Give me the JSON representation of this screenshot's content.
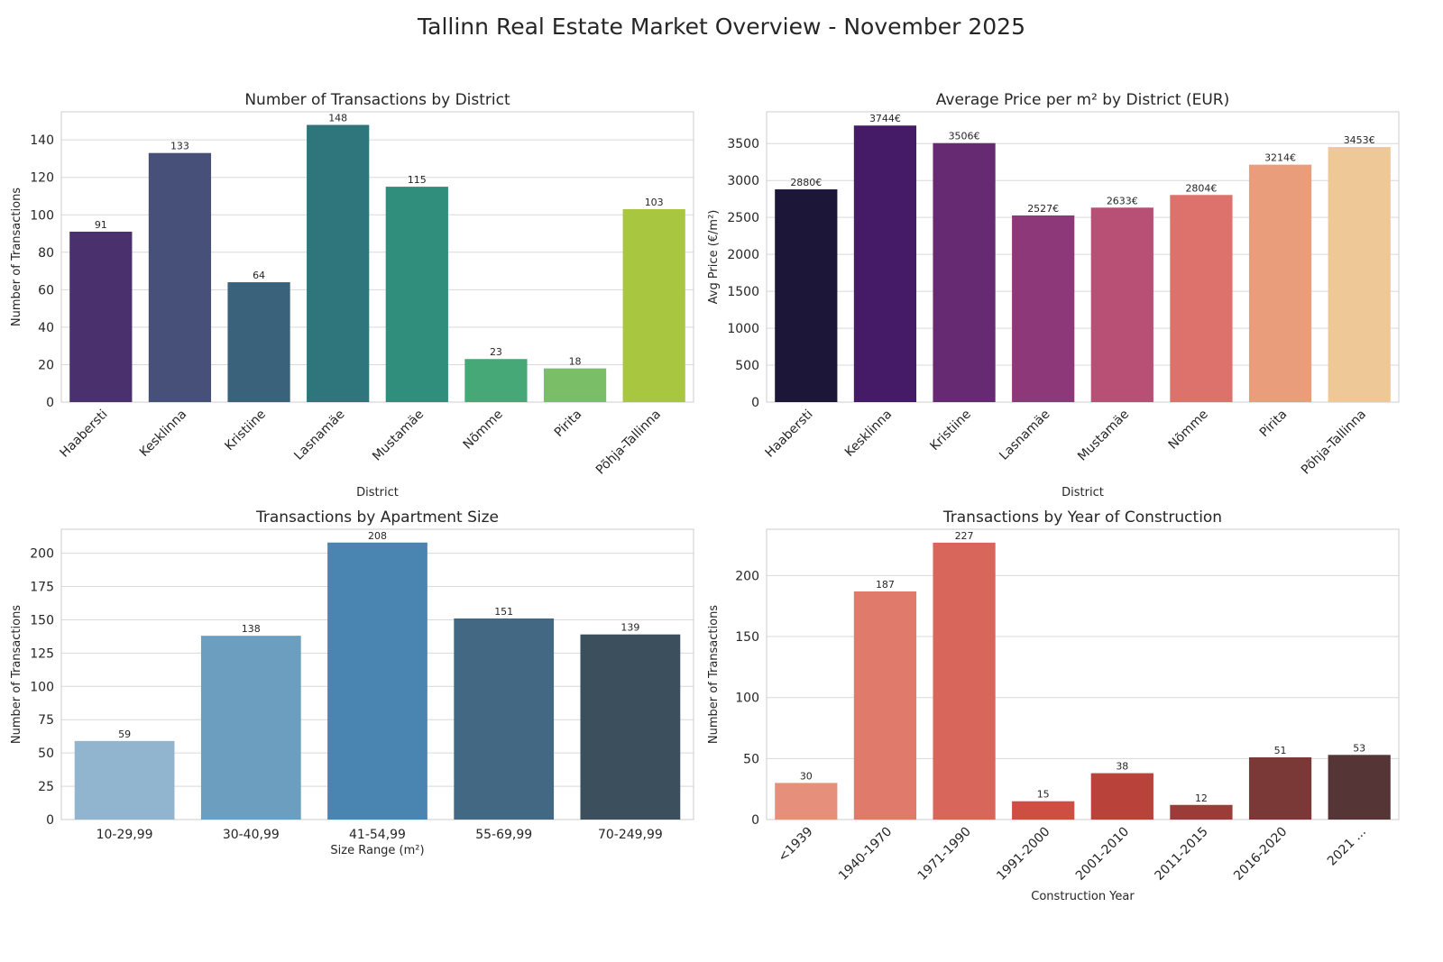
{
  "title": "Tallinn Real Estate Market Overview - November 2025",
  "chart_data": [
    {
      "id": "district-transactions",
      "type": "bar",
      "title": "Number of Transactions by District",
      "xlabel": "District",
      "ylabel": "Number of Transactions",
      "categories": [
        "Haabersti",
        "Kesklinna",
        "Kristiine",
        "Lasnamäe",
        "Mustamäe",
        "Nõmme",
        "Pirita",
        "Põhja-Tallinna"
      ],
      "values": [
        91,
        133,
        64,
        148,
        115,
        23,
        18,
        103
      ],
      "value_labels": [
        "91",
        "133",
        "64",
        "148",
        "115",
        "23",
        "18",
        "103"
      ],
      "ylim": [
        0,
        155
      ],
      "yticks": [
        0,
        20,
        40,
        60,
        80,
        100,
        120,
        140
      ],
      "colors": [
        "#4a306c",
        "#465079",
        "#3a627a",
        "#2e757c",
        "#2f8e7c",
        "#47a877",
        "#7abf68",
        "#a8c640"
      ],
      "rotate_xticks": true,
      "grid": true
    },
    {
      "id": "district-price",
      "type": "bar",
      "title": "Average Price per m² by District (EUR)",
      "xlabel": "District",
      "ylabel": "Avg Price (€/m²)",
      "categories": [
        "Haabersti",
        "Kesklinna",
        "Kristiine",
        "Lasnamäe",
        "Mustamäe",
        "Nõmme",
        "Pirita",
        "Põhja-Tallinna"
      ],
      "values": [
        2880,
        3744,
        3506,
        2527,
        2633,
        2804,
        3214,
        3453
      ],
      "value_labels": [
        "2880€",
        "3744€",
        "3506€",
        "2527€",
        "2633€",
        "2804€",
        "3214€",
        "3453€"
      ],
      "ylim": [
        0,
        3930
      ],
      "yticks": [
        0,
        500,
        1000,
        1500,
        2000,
        2500,
        3000,
        3500
      ],
      "colors": [
        "#1c1638",
        "#451a67",
        "#662a72",
        "#8d3878",
        "#b84f74",
        "#dd716c",
        "#e99d7b",
        "#efc897"
      ],
      "rotate_xticks": true,
      "grid": true
    },
    {
      "id": "size-transactions",
      "type": "bar",
      "title": "Transactions by Apartment Size",
      "xlabel": "Size Range (m²)",
      "ylabel": "Number of Transactions",
      "categories": [
        "10-29,99",
        "30-40,99",
        "41-54,99",
        "55-69,99",
        "70-249,99"
      ],
      "values": [
        59,
        138,
        208,
        151,
        139
      ],
      "value_labels": [
        "59",
        "138",
        "208",
        "151",
        "139"
      ],
      "ylim": [
        0,
        218
      ],
      "yticks": [
        0,
        25,
        50,
        75,
        100,
        125,
        150,
        175,
        200
      ],
      "colors": [
        "#91b4cf",
        "#6c9ec0",
        "#4a85b1",
        "#426883",
        "#3c4f5d"
      ],
      "rotate_xticks": false,
      "grid": true
    },
    {
      "id": "year-transactions",
      "type": "bar",
      "title": "Transactions by Year of Construction",
      "xlabel": "Construction Year",
      "ylabel": "Number of Transactions",
      "categories": [
        "<1939",
        "1940-1970",
        "1971-1990",
        "1991-2000",
        "2001-2010",
        "2011-2015",
        "2016-2020",
        "2021 ..."
      ],
      "values": [
        30,
        187,
        227,
        15,
        38,
        12,
        51,
        53
      ],
      "value_labels": [
        "30",
        "187",
        "227",
        "15",
        "38",
        "12",
        "51",
        "53"
      ],
      "ylim": [
        0,
        238
      ],
      "yticks": [
        0,
        50,
        100,
        150,
        200
      ],
      "colors": [
        "#e68f7a",
        "#e07b6c",
        "#d9665a",
        "#cf4e44",
        "#b9423b",
        "#9b3c38",
        "#7a3936",
        "#553535"
      ],
      "rotate_xticks": true,
      "grid": true
    }
  ]
}
